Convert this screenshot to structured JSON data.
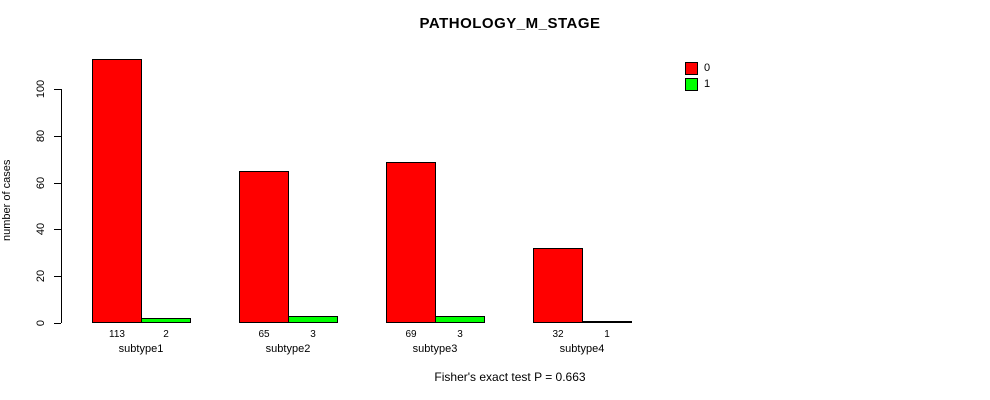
{
  "chart_data": {
    "type": "bar",
    "title": "PATHOLOGY_M_STAGE",
    "ylabel": "number of cases",
    "xlabel": "",
    "categories": [
      "subtype1",
      "subtype2",
      "subtype3",
      "subtype4"
    ],
    "series": [
      {
        "name": "0",
        "color": "#FF0000",
        "values": [
          113,
          65,
          69,
          32
        ]
      },
      {
        "name": "1",
        "color": "#00FF00",
        "values": [
          2,
          3,
          3,
          1
        ]
      }
    ],
    "bar_value_labels_shown": true,
    "yticks": [
      0,
      20,
      40,
      60,
      80,
      100
    ],
    "ylim": [
      0,
      117
    ],
    "grid": false,
    "legend_position": "top-right",
    "footnote": "Fisher's exact test P = 0.663"
  },
  "colors": {
    "background": "#FFFFFF",
    "axis": "#000000",
    "text": "#000000",
    "bar_border": "#000000"
  }
}
